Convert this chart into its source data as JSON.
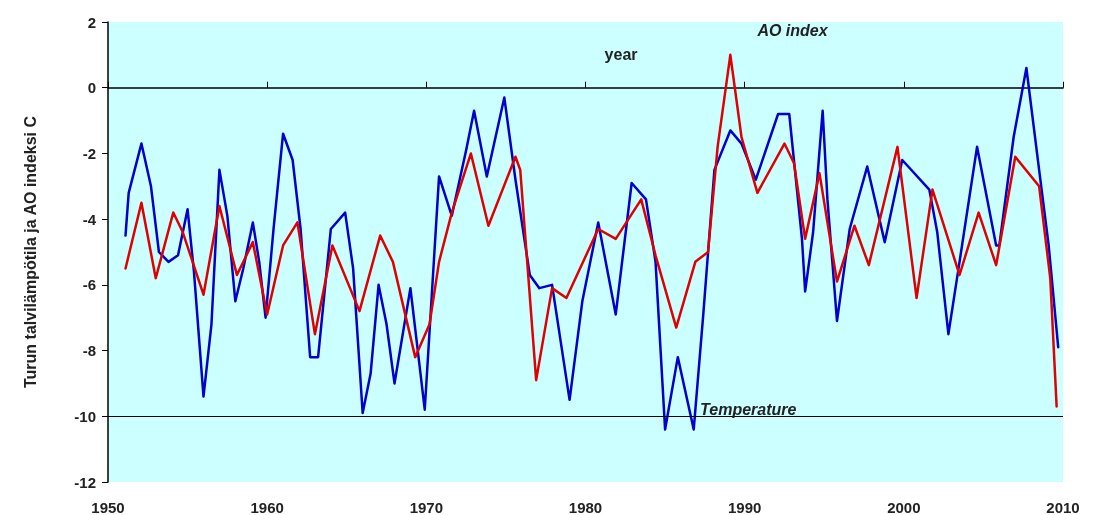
{
  "chart_data": {
    "type": "line",
    "xlabel": "year",
    "ylabel": "Turun talvilämpötila ja AO indeksi C",
    "xlim": [
      1950,
      2010
    ],
    "xticks": [
      1950,
      1960,
      1970,
      1980,
      1990,
      2000,
      2010
    ],
    "ylim": [
      -12,
      2
    ],
    "yticks": [
      -12,
      -10,
      -8,
      -6,
      -4,
      -2,
      0,
      2
    ],
    "grid": false,
    "legend": false,
    "marker": "none",
    "line_style": "solid",
    "ref_lines": [
      {
        "axis": "y",
        "value": -10,
        "label": null,
        "color": "#000000"
      }
    ],
    "series": [
      {
        "name": "Temperature",
        "color": "#0000cc",
        "x": [
          1951.1,
          1951.3,
          1952.1,
          1952.7,
          1953.2,
          1953.8,
          1954.4,
          1955.0,
          1955.4,
          1956.0,
          1956.5,
          1957.0,
          1957.5,
          1958.0,
          1958.5,
          1959.1,
          1959.5,
          1959.9,
          1960.4,
          1961.0,
          1961.6,
          1962.1,
          1962.7,
          1963.2,
          1964.0,
          1964.9,
          1965.4,
          1966.0,
          1966.5,
          1967.0,
          1967.5,
          1968.0,
          1969.0,
          1969.9,
          1970.8,
          1971.6,
          1972.5,
          1973.0,
          1973.8,
          1974.9,
          1975.6,
          1976.5,
          1977.1,
          1977.9,
          1979.0,
          1979.8,
          1980.8,
          1981.9,
          1982.9,
          1983.8,
          1984.4,
          1985.0,
          1985.8,
          1986.8,
          1987.4,
          1988.1,
          1989.1,
          1989.8,
          1990.7,
          1992.1,
          1992.8,
          1993.6,
          1993.8,
          1994.3,
          1994.9,
          1995.2,
          1995.8,
          1996.6,
          1997.7,
          1998.8,
          1999.9,
          2001.6,
          2002.1,
          2002.8,
          2003.5,
          2004.6,
          2005.8,
          2006.0,
          2006.9,
          2007.7,
          2008.5,
          2009.1,
          2009.7
        ],
        "values": [
          -4.5,
          -3.2,
          -1.7,
          -3.0,
          -5.0,
          -5.3,
          -5.1,
          -3.7,
          -5.6,
          -9.4,
          -7.2,
          -2.5,
          -3.9,
          -6.5,
          -5.5,
          -4.1,
          -5.3,
          -7.0,
          -4.3,
          -1.4,
          -2.2,
          -4.3,
          -8.2,
          -8.2,
          -4.3,
          -3.8,
          -5.5,
          -9.9,
          -8.7,
          -6.0,
          -7.2,
          -9.0,
          -6.1,
          -9.8,
          -2.7,
          -3.9,
          -1.9,
          -0.7,
          -2.7,
          -0.3,
          -2.8,
          -5.7,
          -6.1,
          -6.0,
          -9.5,
          -6.5,
          -4.1,
          -6.9,
          -2.9,
          -3.4,
          -5.3,
          -10.4,
          -8.2,
          -10.4,
          -6.9,
          -2.5,
          -1.3,
          -1.7,
          -2.8,
          -0.8,
          -0.8,
          -4.6,
          -6.2,
          -4.4,
          -0.7,
          -3.4,
          -7.1,
          -4.3,
          -2.4,
          -4.7,
          -2.2,
          -3.1,
          -4.4,
          -7.5,
          -5.3,
          -1.8,
          -4.8,
          -4.8,
          -1.5,
          0.6,
          -2.5,
          -4.8,
          -7.9
        ]
      },
      {
        "name": "AO index",
        "color": "#e00000",
        "x": [
          1951.1,
          1952.1,
          1953.0,
          1954.1,
          1954.7,
          1956.0,
          1957.0,
          1958.1,
          1959.1,
          1960.0,
          1961.0,
          1961.9,
          1963.0,
          1964.1,
          1965.8,
          1967.1,
          1967.9,
          1969.3,
          1970.2,
          1970.8,
          1971.6,
          1972.8,
          1973.9,
          1975.6,
          1975.9,
          1976.9,
          1977.9,
          1978.8,
          1980.8,
          1981.9,
          1983.5,
          1984.4,
          1985.7,
          1986.9,
          1987.7,
          1988.3,
          1989.1,
          1989.8,
          1990.8,
          1992.5,
          1993.1,
          1993.8,
          1994.7,
          1995.8,
          1996.9,
          1997.8,
          1999.6,
          2000.8,
          2001.8,
          2003.5,
          2004.7,
          2005.8,
          2007.0,
          2008.5,
          2009.2,
          2009.6
        ],
        "values": [
          -5.5,
          -3.5,
          -5.8,
          -3.8,
          -4.4,
          -6.3,
          -3.6,
          -5.7,
          -4.7,
          -6.9,
          -4.8,
          -4.1,
          -7.5,
          -4.8,
          -6.8,
          -4.5,
          -5.3,
          -8.2,
          -7.2,
          -5.3,
          -3.8,
          -2.0,
          -4.2,
          -2.1,
          -2.5,
          -8.9,
          -6.1,
          -6.4,
          -4.3,
          -4.6,
          -3.4,
          -5.1,
          -7.3,
          -5.3,
          -5.0,
          -1.8,
          1.0,
          -1.5,
          -3.2,
          -1.7,
          -2.3,
          -4.6,
          -2.6,
          -5.9,
          -4.2,
          -5.4,
          -1.8,
          -6.4,
          -3.1,
          -5.7,
          -3.8,
          -5.4,
          -2.1,
          -3.0,
          -5.8,
          -9.7
        ]
      }
    ]
  }
}
